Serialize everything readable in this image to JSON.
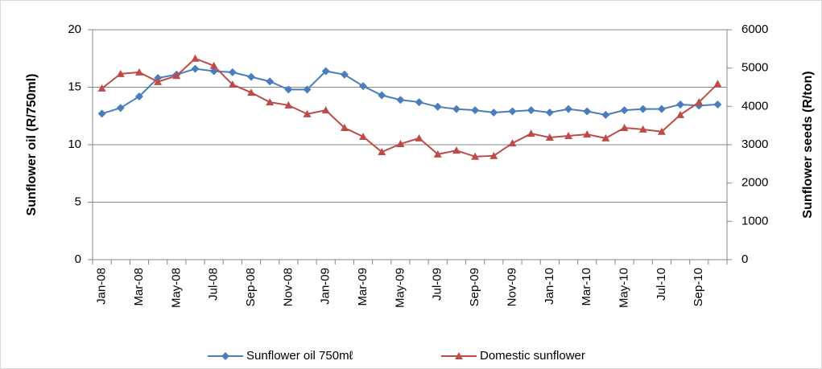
{
  "chart_data": {
    "type": "line",
    "categories": [
      "Jan-08",
      null,
      "Mar-08",
      null,
      "May-08",
      null,
      "Jul-08",
      null,
      "Sep-08",
      null,
      "Nov-08",
      null,
      "Jan-09",
      null,
      "Mar-09",
      null,
      "May-09",
      null,
      "Jul-09",
      null,
      "Sep-09",
      null,
      "Nov-09",
      null,
      "Jan-10",
      null,
      "Mar-10",
      null,
      "May-10",
      null,
      "Jul-10",
      null,
      "Sep-10",
      null
    ],
    "y_label": "Sunflower oil (R/750ml)",
    "y2_label": "Sunflower seeds (R/ton)",
    "ylim": [
      0,
      20
    ],
    "yticks": [
      0,
      5,
      10,
      15,
      20
    ],
    "y2lim": [
      0,
      6000
    ],
    "y2ticks": [
      0,
      1000,
      2000,
      3000,
      4000,
      5000,
      6000
    ],
    "grid": true,
    "legend": "bottom",
    "series": [
      {
        "name": "Sunflower oil 750mℓ",
        "color": "#4a7ebb",
        "marker": "diamond",
        "values": [
          12.7,
          13.2,
          14.2,
          15.8,
          16.1,
          16.6,
          16.4,
          16.3,
          15.9,
          15.5,
          14.8,
          14.8,
          16.4,
          16.1,
          15.1,
          14.3,
          13.9,
          13.7,
          13.3,
          13.1,
          13.0,
          12.8,
          12.9,
          13.0,
          12.8,
          13.1,
          12.9,
          12.6,
          13.0,
          13.1,
          13.1,
          13.5,
          13.4,
          13.5
        ]
      },
      {
        "name": "Domestic sunflower",
        "color": "#be4b48",
        "marker": "triangle",
        "axis": "y2",
        "values": [
          4470,
          4850,
          4890,
          4640,
          4800,
          5250,
          5060,
          4570,
          4360,
          4110,
          4030,
          3800,
          3900,
          3440,
          3210,
          2810,
          3020,
          3170,
          2750,
          2850,
          2690,
          2710,
          3040,
          3290,
          3190,
          3230,
          3270,
          3170,
          3440,
          3400,
          3340,
          3780,
          4110,
          4590
        ]
      }
    ]
  }
}
